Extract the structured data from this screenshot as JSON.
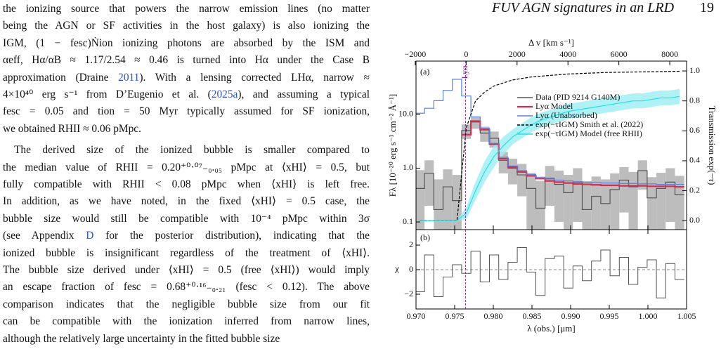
{
  "header": {
    "running_title": "FUV AGN signatures in an LRD",
    "page_number": "19"
  },
  "body": {
    "paragraphs": [
      [
        "the ionizing source that powers the narrow emission lines (no matter",
        "being the AGN or SF activities in the host galaxy) is also ionizing the",
        "IGM, (1 − fesc)Ṅion ionizing photons are absorbed by the ISM and",
        "αeff, Hα/αB ≈ 1.17/2.54 ≈ 0.46 is turned into Hα under the Case B",
        [
          "approximation (Draine ",
          "2011",
          "). With a lensing corrected LHα, narrow ≈"
        ],
        [
          "4×10⁴⁰ erg s⁻¹ from D’Eugenio et al. (",
          "2025a",
          "), and assuming a typical"
        ],
        "fesc = 0.05 and tion = 50 Myr typically assumed for SF ionization,",
        "we obtained RHII ≈ 0.06 pMpc."
      ],
      [
        "The derived size of the ionized bubble is smaller compared to",
        "the median value of RHII = 0.20⁺⁰·⁰⁷₋₀.₀₅ pMpc at ⟨xHI⟩ = 0.5, but",
        "fully compatible with RHII < 0.08 pMpc when ⟨xHI⟩ is left free.",
        "In addition, as we have noted, in the fixed ⟨xHI⟩ = 0.5 case, the",
        "bubble size would still be compatible with 10⁻⁴ pMpc within 3σ",
        [
          "(see Appendix ",
          "D",
          " for the posterior distribution), indicating that the"
        ],
        "ionized bubble is insignificant regardless of the treatment of ⟨xHI⟩.",
        "The bubble size derived under ⟨xHI⟩ = 0.5 (free ⟨xHI⟩) would imply",
        "an escape fraction of fesc = 0.68⁺⁰·¹⁶₋₀.₂₁ (fesc < 0.12). The above",
        "comparison indicates that the negligible bubble size from our fit",
        "can be compatible with the ionization inferred from narrow lines,",
        "although the relatively large uncertainty in the fitted bubble size"
      ]
    ]
  },
  "chart_data": [
    {
      "type": "step",
      "panel_label": "(a)",
      "x2label": "Δ v [km s⁻¹]",
      "ylabel": "Fλ [10⁻²⁰ erg s⁻¹ cm⁻² Å⁻¹]",
      "y2label": "Transmission exp(−τ)",
      "annotation": "Lyα",
      "lya_wavelength": 0.9764,
      "annotation_color": "#7a2a8a",
      "x": [
        0.9705,
        0.9717,
        0.9729,
        0.9741,
        0.9753,
        0.9765,
        0.9777,
        0.9789,
        0.9801,
        0.9813,
        0.9825,
        0.9837,
        0.9849,
        0.9861,
        0.9873,
        0.9885,
        0.9897,
        0.9909,
        0.9921,
        0.9933,
        0.9945,
        0.9957,
        0.9969,
        0.9981,
        0.9993,
        1.0005,
        1.0017,
        1.0029,
        1.0041
      ],
      "xlim": [
        0.97,
        1.005
      ],
      "x2lim": [
        -1970,
        8660
      ],
      "x2ticks": [
        {
          "value": -2000,
          "label": "−2000"
        },
        0,
        2000,
        4000,
        6000,
        8000
      ],
      "ylim": [
        0.072,
        98
      ],
      "log_y": true,
      "yticks": [
        0.1,
        {
          "value": 1,
          "label": "1.0"
        },
        {
          "value": 10,
          "label": "10.0"
        }
      ],
      "y2lim": [
        -0.06,
        1.066
      ],
      "y2ticks": [
        {
          "value": 0,
          "label": "0.0"
        },
        0.2,
        0.4,
        0.6,
        0.8,
        {
          "value": 1,
          "label": "1.0"
        }
      ],
      "legend": "upper right",
      "series": [
        {
          "name": "Data (PID 9214 G140M)",
          "color": "#555555",
          "band_color": "#bdbdbd",
          "drawstyle": "steps",
          "values": [
            0.42,
            0.8,
            0.17,
            0.45,
            0.25,
            5.0,
            7.2,
            4.5,
            3.6,
            1.4,
            1.0,
            0.75,
            0.42,
            0.18,
            0.65,
            0.5,
            0.35,
            0.55,
            0.17,
            0.3,
            0.22,
            0.4,
            0.6,
            0.45,
            0.9,
            0.28,
            0.42,
            0.55,
            0.32
          ],
          "errors": [
            0.5,
            0.6,
            0.45,
            0.5,
            0.5,
            1.5,
            1.8,
            1.4,
            1.2,
            0.6,
            0.5,
            0.45,
            0.4,
            0.4,
            0.45,
            0.4,
            0.4,
            0.45,
            0.4,
            0.4,
            0.4,
            0.4,
            0.45,
            0.4,
            0.5,
            0.4,
            0.4,
            0.45,
            0.4
          ]
        },
        {
          "name": "Lyα Model",
          "color": "#d62d4e",
          "drawstyle": "steps",
          "values": [
            null,
            null,
            null,
            null,
            null,
            4.2,
            7.5,
            5.2,
            2.8,
            1.5,
            1.05,
            0.85,
            0.72,
            0.64,
            0.58,
            0.55,
            0.53,
            0.51,
            0.5,
            0.49,
            0.48,
            0.48,
            0.47,
            0.47,
            0.47,
            0.46,
            0.46,
            0.46,
            0.45
          ]
        },
        {
          "name": "Lyα (Unabsorbed)",
          "color": "#5a82d8",
          "drawstyle": "steps",
          "values": [
            10.5,
            13,
            18,
            28,
            45,
            22,
            9,
            5.5,
            2.9,
            1.6,
            1.1,
            0.9,
            0.76,
            0.68,
            0.63,
            0.6,
            0.58,
            0.56,
            0.55,
            0.54,
            0.53,
            0.53,
            0.52,
            0.52,
            0.51,
            0.51,
            0.5,
            0.5,
            0.5
          ]
        },
        {
          "name": "exp(−τIGM) Smith et al. (2022)",
          "color": "#000000",
          "drawstyle": "line",
          "linestyle": "dashed",
          "axis": "y2",
          "values": [
            0,
            0,
            0,
            0,
            0,
            0.62,
            0.8,
            0.86,
            0.9,
            0.92,
            0.94,
            0.95,
            0.96,
            0.965,
            0.97,
            0.975,
            0.98,
            0.982,
            0.985,
            0.987,
            0.99,
            0.991,
            0.992,
            0.993,
            0.994,
            0.995,
            0.996,
            0.997,
            0.998
          ]
        },
        {
          "name": "exp(−τIGM) Model (free RHII)",
          "color": "#22dfe8",
          "band_color": "#9beff3",
          "drawstyle": "line",
          "axis": "y2",
          "values": [
            0,
            0,
            0,
            0,
            0,
            0.05,
            0.2,
            0.33,
            0.43,
            0.5,
            0.56,
            0.6,
            0.64,
            0.67,
            0.69,
            0.71,
            0.73,
            0.74,
            0.75,
            0.76,
            0.77,
            0.78,
            0.79,
            0.8,
            0.8,
            0.81,
            0.82,
            0.82,
            0.83
          ],
          "errors": [
            0,
            0,
            0,
            0,
            0,
            0.04,
            0.06,
            0.07,
            0.07,
            0.06,
            0.05,
            0.05,
            0.05,
            0.05,
            0.05,
            0.05,
            0.05,
            0.05,
            0.05,
            0.05,
            0.05,
            0.05,
            0.05,
            0.05,
            0.05,
            0.05,
            0.05,
            0.05,
            0.05
          ]
        }
      ]
    },
    {
      "type": "step",
      "panel_label": "(b)",
      "xlabel": "λ (obs.) [μm]",
      "ylabel": "χ",
      "color": "#555555",
      "xticks": [
        {
          "value": 0.97,
          "label": "0.970"
        },
        {
          "value": 0.975,
          "label": "0.975"
        },
        {
          "value": 0.98,
          "label": "0.980"
        },
        {
          "value": 0.985,
          "label": "0.985"
        },
        {
          "value": 0.99,
          "label": "0.990"
        },
        {
          "value": 0.995,
          "label": "0.995"
        },
        {
          "value": 1.0,
          "label": "1.000"
        },
        {
          "value": 1.005,
          "label": "1.005"
        }
      ],
      "ylim": [
        -3.2,
        3.26
      ],
      "yticks": [
        {
          "value": -2,
          "label": "−2"
        },
        0,
        2
      ],
      "values": [
        -1.8,
        1.2,
        -2.2,
        -0.6,
        0.4,
        -0.3,
        1.5,
        -1.0,
        1.2,
        -0.8,
        0.6,
        1.8,
        -0.2,
        -2.1,
        0.9,
        1.1,
        -1.5,
        0.3,
        -0.9,
        0.7,
        1.6,
        -0.5,
        1.0,
        -1.2,
        0.2,
        0.8,
        -2.3,
        0.5,
        -0.8
      ]
    }
  ]
}
